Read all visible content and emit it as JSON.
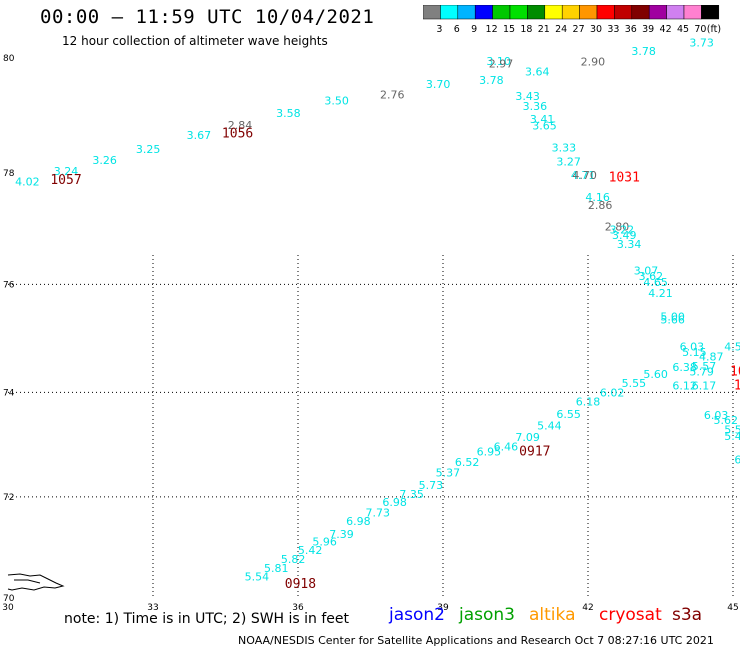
{
  "header": {
    "title": "00:00 – 11:59 UTC 10/04/2021",
    "subtitle": "12 hour collection of altimeter wave heights"
  },
  "legend": {
    "unit": "(ft)",
    "bins": [
      {
        "label": "3",
        "color": "#808080"
      },
      {
        "label": "6",
        "color": "#00ffff"
      },
      {
        "label": "9",
        "color": "#00b4ff"
      },
      {
        "label": "12",
        "color": "#0000ff"
      },
      {
        "label": "15",
        "color": "#00c800"
      },
      {
        "label": "18",
        "color": "#00e000"
      },
      {
        "label": "21",
        "color": "#008c00"
      },
      {
        "label": "24",
        "color": "#ffff00"
      },
      {
        "label": "27",
        "color": "#ffd200"
      },
      {
        "label": "30",
        "color": "#ff9600"
      },
      {
        "label": "33",
        "color": "#ff0000"
      },
      {
        "label": "36",
        "color": "#c00000"
      },
      {
        "label": "39",
        "color": "#800000"
      },
      {
        "label": "42",
        "color": "#a000a0"
      },
      {
        "label": "45",
        "color": "#d080f0"
      },
      {
        "label": "70",
        "color": "#ff80d0"
      },
      {
        "label": "",
        "color": "#000000"
      }
    ]
  },
  "map": {
    "lon_range": [
      30,
      45
    ],
    "lat_range": [
      70,
      80
    ],
    "x_ticks": [
      "30",
      "33",
      "36",
      "39",
      "42",
      "45"
    ],
    "y_ticks": [
      "80",
      "78",
      "76",
      "74",
      "72",
      "70"
    ],
    "grid_lons": [
      33,
      36,
      39,
      42,
      45
    ],
    "grid_lats": [
      76,
      74,
      72
    ],
    "colors": {
      "cyan": "#00e4e4",
      "gray": "#666666",
      "red": "#ff0000",
      "maroon": "#800000"
    },
    "observations": [
      {
        "lon": 30.4,
        "lat": 77.78,
        "text": "4.02",
        "color": "cyan"
      },
      {
        "lon": 31.2,
        "lat": 77.96,
        "text": "3.24",
        "color": "cyan"
      },
      {
        "lon": 32.0,
        "lat": 78.16,
        "text": "3.26",
        "color": "cyan"
      },
      {
        "lon": 32.9,
        "lat": 78.35,
        "text": "3.25",
        "color": "cyan"
      },
      {
        "lon": 33.95,
        "lat": 78.6,
        "text": "3.67",
        "color": "cyan"
      },
      {
        "lon": 34.8,
        "lat": 78.77,
        "text": "2.84",
        "color": "gray"
      },
      {
        "lon": 35.8,
        "lat": 78.98,
        "text": "3.58",
        "color": "cyan"
      },
      {
        "lon": 36.8,
        "lat": 79.2,
        "text": "3.50",
        "color": "cyan"
      },
      {
        "lon": 37.95,
        "lat": 79.3,
        "text": "2.76",
        "color": "gray"
      },
      {
        "lon": 38.9,
        "lat": 79.48,
        "text": "3.70",
        "color": "cyan"
      },
      {
        "lon": 40.15,
        "lat": 79.88,
        "text": "3.10",
        "color": "cyan"
      },
      {
        "lon": 40.2,
        "lat": 79.84,
        "text": "2.97",
        "color": "gray"
      },
      {
        "lon": 40.0,
        "lat": 79.55,
        "text": "3.78",
        "color": "cyan"
      },
      {
        "lon": 40.95,
        "lat": 79.7,
        "text": "3.64",
        "color": "cyan"
      },
      {
        "lon": 42.1,
        "lat": 79.87,
        "text": "2.90",
        "color": "gray"
      },
      {
        "lon": 43.15,
        "lat": 80.05,
        "text": "3.78",
        "color": "cyan"
      },
      {
        "lon": 44.35,
        "lat": 80.2,
        "text": "3.73",
        "color": "cyan"
      },
      {
        "lon": 40.75,
        "lat": 79.28,
        "text": "3.43",
        "color": "cyan"
      },
      {
        "lon": 40.9,
        "lat": 79.1,
        "text": "3.36",
        "color": "cyan"
      },
      {
        "lon": 41.05,
        "lat": 78.88,
        "text": "3.41",
        "color": "cyan"
      },
      {
        "lon": 41.1,
        "lat": 78.76,
        "text": "3.65",
        "color": "cyan"
      },
      {
        "lon": 41.5,
        "lat": 78.38,
        "text": "3.33",
        "color": "cyan"
      },
      {
        "lon": 41.6,
        "lat": 78.13,
        "text": "3.27",
        "color": "cyan"
      },
      {
        "lon": 41.9,
        "lat": 77.89,
        "text": "4.71",
        "color": "cyan"
      },
      {
        "lon": 41.93,
        "lat": 77.89,
        "text": "4.70",
        "color": "gray"
      },
      {
        "lon": 42.2,
        "lat": 77.5,
        "text": "4.16",
        "color": "cyan"
      },
      {
        "lon": 42.25,
        "lat": 77.36,
        "text": "2.86",
        "color": "gray"
      },
      {
        "lon": 42.6,
        "lat": 76.97,
        "text": "2.80",
        "color": "gray"
      },
      {
        "lon": 42.7,
        "lat": 76.92,
        "text": "3.22",
        "color": "cyan"
      },
      {
        "lon": 42.75,
        "lat": 76.82,
        "text": "3.49",
        "color": "cyan"
      },
      {
        "lon": 42.85,
        "lat": 76.66,
        "text": "3.34",
        "color": "cyan"
      },
      {
        "lon": 43.2,
        "lat": 76.18,
        "text": "3.07",
        "color": "cyan"
      },
      {
        "lon": 43.3,
        "lat": 76.08,
        "text": "3.62",
        "color": "cyan"
      },
      {
        "lon": 43.4,
        "lat": 75.97,
        "text": "4.65",
        "color": "cyan"
      },
      {
        "lon": 43.5,
        "lat": 75.77,
        "text": "4.21",
        "color": "cyan"
      },
      {
        "lon": 43.75,
        "lat": 75.34,
        "text": "5.00",
        "color": "cyan"
      },
      {
        "lon": 43.75,
        "lat": 75.28,
        "text": "5.66",
        "color": "cyan"
      },
      {
        "lon": 44.15,
        "lat": 74.78,
        "text": "6.03",
        "color": "cyan"
      },
      {
        "lon": 44.2,
        "lat": 74.68,
        "text": "5.15",
        "color": "cyan"
      },
      {
        "lon": 44.55,
        "lat": 74.6,
        "text": "4.87",
        "color": "cyan"
      },
      {
        "lon": 45.0,
        "lat": 74.78,
        "text": "4.5",
        "color": "cyan"
      },
      {
        "lon": 44.0,
        "lat": 74.4,
        "text": "6.38",
        "color": "cyan"
      },
      {
        "lon": 44.4,
        "lat": 74.42,
        "text": "5.57",
        "color": "cyan"
      },
      {
        "lon": 44.35,
        "lat": 74.32,
        "text": "5.79",
        "color": "cyan"
      },
      {
        "lon": 44.0,
        "lat": 74.05,
        "text": "6.12",
        "color": "cyan"
      },
      {
        "lon": 44.4,
        "lat": 74.05,
        "text": "6.17",
        "color": "cyan"
      },
      {
        "lon": 43.4,
        "lat": 74.27,
        "text": "5.60",
        "color": "cyan"
      },
      {
        "lon": 42.95,
        "lat": 74.1,
        "text": "5.55",
        "color": "cyan"
      },
      {
        "lon": 42.5,
        "lat": 73.92,
        "text": "6.02",
        "color": "cyan"
      },
      {
        "lon": 42.0,
        "lat": 73.75,
        "text": "6.18",
        "color": "cyan"
      },
      {
        "lon": 41.6,
        "lat": 73.52,
        "text": "6.55",
        "color": "cyan"
      },
      {
        "lon": 41.2,
        "lat": 73.3,
        "text": "5.44",
        "color": "cyan"
      },
      {
        "lon": 40.75,
        "lat": 73.08,
        "text": "7.09",
        "color": "cyan"
      },
      {
        "lon": 40.3,
        "lat": 72.9,
        "text": "6.46",
        "color": "cyan"
      },
      {
        "lon": 39.95,
        "lat": 72.8,
        "text": "6.95",
        "color": "cyan"
      },
      {
        "lon": 39.5,
        "lat": 72.6,
        "text": "6.52",
        "color": "cyan"
      },
      {
        "lon": 39.1,
        "lat": 72.4,
        "text": "5.37",
        "color": "cyan"
      },
      {
        "lon": 38.75,
        "lat": 72.15,
        "text": "5.73",
        "color": "cyan"
      },
      {
        "lon": 38.35,
        "lat": 71.98,
        "text": "7.35",
        "color": "cyan"
      },
      {
        "lon": 38.0,
        "lat": 71.82,
        "text": "6.98",
        "color": "cyan"
      },
      {
        "lon": 37.65,
        "lat": 71.62,
        "text": "7.73",
        "color": "cyan"
      },
      {
        "lon": 37.25,
        "lat": 71.45,
        "text": "6.98",
        "color": "cyan"
      },
      {
        "lon": 36.9,
        "lat": 71.2,
        "text": "7.39",
        "color": "cyan"
      },
      {
        "lon": 36.55,
        "lat": 71.05,
        "text": "5.96",
        "color": "cyan"
      },
      {
        "lon": 36.25,
        "lat": 70.88,
        "text": "5.42",
        "color": "cyan"
      },
      {
        "lon": 35.9,
        "lat": 70.7,
        "text": "5.82",
        "color": "cyan"
      },
      {
        "lon": 35.55,
        "lat": 70.52,
        "text": "5.81",
        "color": "cyan"
      },
      {
        "lon": 35.15,
        "lat": 70.35,
        "text": "5.54",
        "color": "cyan"
      },
      {
        "lon": 44.65,
        "lat": 73.5,
        "text": "6.03",
        "color": "cyan"
      },
      {
        "lon": 44.85,
        "lat": 73.4,
        "text": "5.62",
        "color": "cyan"
      },
      {
        "lon": 45.0,
        "lat": 73.22,
        "text": "5.5",
        "color": "cyan"
      },
      {
        "lon": 45.0,
        "lat": 73.1,
        "text": "5.4",
        "color": "cyan"
      },
      {
        "lon": 45.1,
        "lat": 72.65,
        "text": "6",
        "color": "cyan"
      }
    ],
    "time_labels": [
      {
        "lon": 31.2,
        "lat": 77.8,
        "text": "1057",
        "color": "maroon"
      },
      {
        "lon": 34.75,
        "lat": 78.62,
        "text": "1056",
        "color": "maroon"
      },
      {
        "lon": 42.75,
        "lat": 77.85,
        "text": "1031",
        "color": "red"
      },
      {
        "lon": 45.1,
        "lat": 74.32,
        "text": "10",
        "color": "red"
      },
      {
        "lon": 45.1,
        "lat": 74.05,
        "text": "1",
        "color": "red"
      },
      {
        "lon": 40.9,
        "lat": 72.8,
        "text": "0917",
        "color": "maroon"
      },
      {
        "lon": 36.05,
        "lat": 70.2,
        "text": "0918",
        "color": "maroon"
      }
    ]
  },
  "footer": {
    "note": "note: 1) Time is in UTC; 2) SWH is in feet",
    "satellites": [
      {
        "name": "jason2",
        "color": "#0000ff"
      },
      {
        "name": "jason3",
        "color": "#00a000"
      },
      {
        "name": "altika",
        "color": "#ff9900"
      },
      {
        "name": "cryosat",
        "color": "#ff0000"
      },
      {
        "name": "s3a",
        "color": "#800000"
      }
    ],
    "credit": "NOAA/NESDIS Center for Satellite Applications and Research   Oct  7 08:27:16 UTC 2021"
  }
}
